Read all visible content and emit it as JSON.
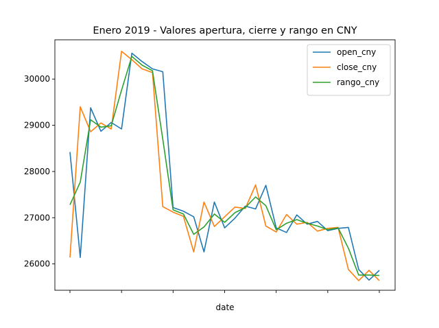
{
  "chart_data": {
    "type": "line",
    "title": "Enero 2019 - Valores apertura, cierre y rango en CNY",
    "xlabel": "date",
    "ylabel": "",
    "x_tick_labels": [
      "",
      "",
      "",
      "",
      "",
      "",
      ""
    ],
    "yticks": [
      26000,
      27000,
      28000,
      29000,
      30000
    ],
    "ylim": [
      25430,
      30850
    ],
    "grid": false,
    "legend_position": "upper right",
    "series": [
      {
        "name": "open_cny",
        "color": "#1f77b4",
        "values": [
          28420,
          26140,
          29380,
          28870,
          29060,
          28920,
          30560,
          30380,
          30220,
          30160,
          27220,
          27140,
          27020,
          26260,
          27340,
          26780,
          26990,
          27250,
          27190,
          27700,
          26780,
          26680,
          27060,
          26860,
          26920,
          26720,
          26770,
          26790,
          25880,
          25650,
          25860
        ]
      },
      {
        "name": "close_cny",
        "color": "#ff7f0e",
        "values": [
          26140,
          29400,
          28860,
          29050,
          28920,
          30600,
          30420,
          30220,
          30140,
          27240,
          27120,
          27030,
          26260,
          27340,
          26810,
          27020,
          27230,
          27200,
          27710,
          26820,
          26690,
          27070,
          26860,
          26900,
          26710,
          26770,
          26790,
          25880,
          25640,
          25860,
          25640
        ]
      },
      {
        "name": "rango_cny",
        "color": "#2ca02c",
        "values": [
          27280,
          27770,
          29120,
          28960,
          28990,
          29760,
          30490,
          30300,
          30180,
          28700,
          27170,
          27080,
          26640,
          26800,
          27080,
          26900,
          27110,
          27220,
          27450,
          27260,
          26740,
          26880,
          26960,
          26880,
          26820,
          26740,
          26780,
          26340,
          25760,
          25760,
          25750
        ]
      }
    ]
  }
}
